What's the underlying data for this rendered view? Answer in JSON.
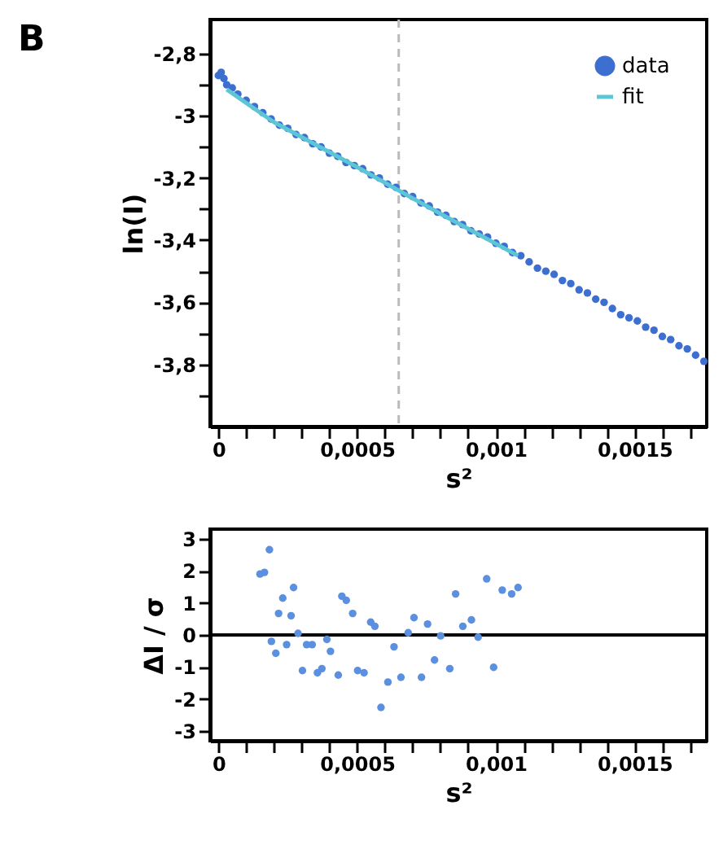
{
  "chart_data": [
    {
      "type": "scatter",
      "annotations": [
        "B"
      ],
      "xlabel": "s²",
      "ylabel": "ln(I)",
      "legend": "top right",
      "grid": false,
      "marker": "circle",
      "xlim": [
        -3e-05,
        0.00176
      ],
      "ylim": [
        -4.0,
        -2.69
      ],
      "xticks": [
        {
          "value": 0,
          "label": "0"
        },
        {
          "value": 0.0001,
          "label": null
        },
        {
          "value": 0.0002,
          "label": null
        },
        {
          "value": 0.0003,
          "label": null
        },
        {
          "value": 0.0004,
          "label": null
        },
        {
          "value": 0.0005,
          "label": "0,0005"
        },
        {
          "value": 0.0006,
          "label": null
        },
        {
          "value": 0.0007,
          "label": null
        },
        {
          "value": 0.0008,
          "label": null
        },
        {
          "value": 0.0009,
          "label": null
        },
        {
          "value": 0.001,
          "label": "0,001"
        },
        {
          "value": 0.0011,
          "label": null
        },
        {
          "value": 0.0012,
          "label": null
        },
        {
          "value": 0.0013,
          "label": null
        },
        {
          "value": 0.0014,
          "label": null
        },
        {
          "value": 0.0015,
          "label": "0,0015"
        },
        {
          "value": 0.0016,
          "label": null
        },
        {
          "value": 0.0017,
          "label": null
        }
      ],
      "yticks": [
        {
          "value": -2.8,
          "label": "-2,8"
        },
        {
          "value": -2.9,
          "label": null
        },
        -3,
        {
          "value": -3.1,
          "label": null
        },
        {
          "value": -3.2,
          "label": "-3,2"
        },
        {
          "value": -3.3,
          "label": null
        },
        {
          "value": -3.4,
          "label": "-3,4"
        },
        {
          "value": -3.5,
          "label": null
        },
        {
          "value": -3.6,
          "label": "-3,6"
        },
        {
          "value": -3.7,
          "label": null
        },
        {
          "value": -3.8,
          "label": "-3,8"
        },
        {
          "value": -3.9,
          "label": null
        }
      ],
      "ref_lines": [
        {
          "axis": "x",
          "value": 0.00065,
          "color": "#bbbbbb",
          "line_style": "dashed"
        }
      ],
      "series": [
        {
          "name": "data",
          "color": "#3d6fd1",
          "x": [
            0,
            1e-05,
            2e-05,
            3e-05,
            5e-05,
            7e-05,
            0.0001,
            0.00013,
            0.00016,
            0.00019,
            0.00022,
            0.00025,
            0.00028,
            0.00031,
            0.00034,
            0.00037,
            0.0004,
            0.00043,
            0.00046,
            0.00049,
            0.00052,
            0.00055,
            0.00058,
            0.00061,
            0.00064,
            0.00067,
            0.0007,
            0.00073,
            0.00076,
            0.00079,
            0.00082,
            0.00085,
            0.00088,
            0.00091,
            0.00094,
            0.00097,
            0.001,
            0.00103,
            0.00106,
            0.00109,
            0.00112,
            0.00115,
            0.00118,
            0.00121,
            0.00124,
            0.00127,
            0.0013,
            0.00133,
            0.00136,
            0.00139,
            0.00142,
            0.00145,
            0.00148,
            0.00151,
            0.00154,
            0.00157,
            0.0016,
            0.00163,
            0.00166,
            0.00169,
            0.00172,
            0.00175
          ],
          "values": [
            -2.87,
            -2.86,
            -2.88,
            -2.9,
            -2.91,
            -2.93,
            -2.95,
            -2.97,
            -2.99,
            -3.01,
            -3.03,
            -3.04,
            -3.06,
            -3.07,
            -3.09,
            -3.1,
            -3.12,
            -3.13,
            -3.15,
            -3.16,
            -3.17,
            -3.19,
            -3.2,
            -3.22,
            -3.23,
            -3.25,
            -3.26,
            -3.28,
            -3.29,
            -3.31,
            -3.32,
            -3.34,
            -3.35,
            -3.37,
            -3.38,
            -3.39,
            -3.41,
            -3.42,
            -3.44,
            -3.45,
            -3.47,
            -3.49,
            -3.5,
            -3.51,
            -3.53,
            -3.54,
            -3.56,
            -3.57,
            -3.59,
            -3.6,
            -3.62,
            -3.64,
            -3.65,
            -3.66,
            -3.68,
            -3.69,
            -3.71,
            -3.72,
            -3.74,
            -3.75,
            -3.77,
            -3.79
          ]
        },
        {
          "name": "fit",
          "type": "line",
          "marker": "none",
          "line_style": "solid",
          "color": "#5cc6d6",
          "x": [
            3e-05,
            0.0002,
            0.0005,
            0.0008,
            0.00108
          ],
          "values": [
            -2.915,
            -3.02,
            -3.165,
            -3.315,
            -3.45
          ]
        }
      ]
    },
    {
      "type": "scatter",
      "xlabel": "s²",
      "ylabel": "ΔI / σ",
      "legend": false,
      "grid": false,
      "marker": "circle",
      "xlim": [
        -3e-05,
        0.00176
      ],
      "ylim": [
        -3.3,
        3.3
      ],
      "xticks": [
        {
          "value": 0,
          "label": "0"
        },
        {
          "value": 0.0001,
          "label": null
        },
        {
          "value": 0.0002,
          "label": null
        },
        {
          "value": 0.0003,
          "label": null
        },
        {
          "value": 0.0004,
          "label": null
        },
        {
          "value": 0.0005,
          "label": "0,0005"
        },
        {
          "value": 0.0006,
          "label": null
        },
        {
          "value": 0.0007,
          "label": null
        },
        {
          "value": 0.0008,
          "label": null
        },
        {
          "value": 0.0009,
          "label": null
        },
        {
          "value": 0.001,
          "label": "0,001"
        },
        {
          "value": 0.0011,
          "label": null
        },
        {
          "value": 0.0012,
          "label": null
        },
        {
          "value": 0.0013,
          "label": null
        },
        {
          "value": 0.0014,
          "label": null
        },
        {
          "value": 0.0015,
          "label": "0,0015"
        },
        {
          "value": 0.0016,
          "label": null
        },
        {
          "value": 0.0017,
          "label": null
        }
      ],
      "yticks": [
        -3,
        -2,
        -1,
        0,
        1,
        2,
        3
      ],
      "ref_lines": [
        {
          "axis": "y",
          "value": 0,
          "color": "#000000",
          "line_style": "solid"
        }
      ],
      "series": [
        {
          "color": "#5b8fe0",
          "x": [
            0.00015,
            0.000166,
            0.000184,
            0.000191,
            0.000207,
            0.000217,
            0.000232,
            0.000246,
            0.000262,
            0.000271,
            0.000287,
            0.000303,
            0.000318,
            0.000338,
            0.000357,
            0.000373,
            0.000391,
            0.000404,
            0.000432,
            0.000445,
            0.000461,
            0.000484,
            0.000502,
            0.000525,
            0.000549,
            0.000564,
            0.000586,
            0.000611,
            0.000633,
            0.000658,
            0.000684,
            0.000705,
            0.000732,
            0.000754,
            0.000779,
            0.000801,
            0.000834,
            0.000855,
            0.000881,
            0.000912,
            0.000936,
            0.000967,
            0.000992,
            0.001023,
            0.001057,
            0.00108
          ],
          "values": [
            1.9,
            1.95,
            2.66,
            -0.2,
            -0.57,
            0.67,
            1.15,
            -0.3,
            0.6,
            1.48,
            0.05,
            -1.11,
            -0.3,
            -0.3,
            -1.18,
            -1.05,
            -0.14,
            -0.51,
            -1.25,
            1.21,
            1.08,
            0.67,
            -1.11,
            -1.18,
            0.4,
            0.27,
            -2.26,
            -1.47,
            -0.37,
            -1.32,
            0.07,
            0.54,
            -1.32,
            0.34,
            -0.78,
            -0.03,
            -1.05,
            1.28,
            0.27,
            0.47,
            -0.07,
            1.75,
            -1.01,
            1.4,
            1.28,
            1.48
          ]
        }
      ]
    }
  ]
}
